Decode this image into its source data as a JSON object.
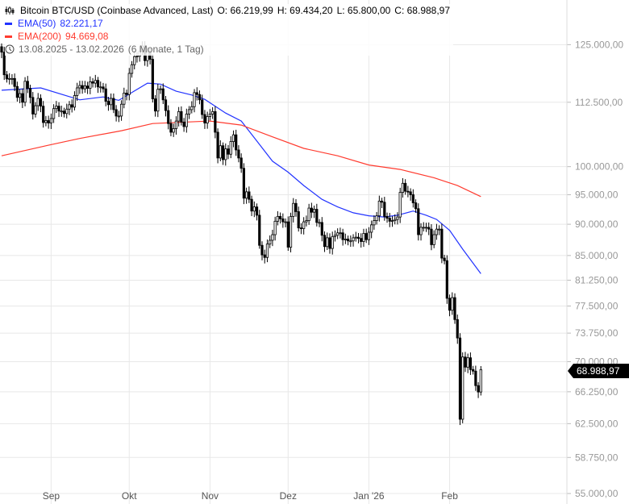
{
  "header": {
    "title": "Bitcoin BTC/USD (Coinbase Advanced, Last)",
    "open": "O: 66.219,99",
    "high": "H: 69.434,20",
    "low": "L: 65.800,00",
    "close": "C: 68.988,97",
    "ema50_label": "EMA(50)",
    "ema50_value": "82.221,17",
    "ema200_label": "EMA(200)",
    "ema200_value": "94.669,08",
    "range": "13.08.2025 - 13.02.2026",
    "period": "(6 Monate, 1 Tag)",
    "icons": [
      "candlestick-icon",
      "clock-icon"
    ]
  },
  "colors": {
    "ema50": "#2233ff",
    "ema200": "#ff3b2f",
    "candle_down": "#000000",
    "candle_up": "#ffffff",
    "grid": "#e8e8e8",
    "axis_text": "#999999"
  },
  "price_tag": "68.988,97",
  "chart_data": {
    "type": "candlestick",
    "y_scale": "log",
    "ylim": [
      55000,
      127000
    ],
    "grid": true,
    "y_ticks": [
      "125.000,00",
      "112.500,00",
      "100.000,00",
      "95.000,00",
      "90.000,00",
      "85.000,00",
      "81.250,00",
      "77.500,00",
      "73.750,00",
      "70.000,00",
      "66.250,00",
      "62.500,00",
      "58.750,00",
      "55.000,00"
    ],
    "y_tick_values": [
      125000,
      112500,
      100000,
      95000,
      90000,
      85000,
      81250,
      77500,
      73750,
      70000,
      66250,
      62500,
      58750,
      55000
    ],
    "x_ticks": [
      {
        "label": "Sep",
        "date": "2025-09-01"
      },
      {
        "label": "Okt",
        "date": "2025-10-01"
      },
      {
        "label": "Nov",
        "date": "2025-11-01"
      },
      {
        "label": "Dez",
        "date": "2025-12-01"
      },
      {
        "label": "Jan '26",
        "date": "2026-01-01"
      },
      {
        "label": "Feb",
        "date": "2026-02-01"
      }
    ],
    "start_date": "2025-08-13",
    "last_candle": {
      "open": 66219.99,
      "high": 69434.2,
      "low": 65800.0,
      "close": 68988.97
    },
    "daily_close": [
      123300,
      118300,
      117400,
      117500,
      117500,
      115800,
      113500,
      114300,
      112500,
      116900,
      115400,
      113500,
      110100,
      111800,
      113300,
      111700,
      108400,
      108800,
      108300,
      109200,
      111200,
      111700,
      110700,
      110700,
      110200,
      111100,
      112000,
      111500,
      113900,
      115500,
      116000,
      115300,
      115900,
      115400,
      116800,
      116500,
      117100,
      115700,
      115700,
      115300,
      112700,
      112000,
      113300,
      111000,
      109700,
      109700,
      112100,
      114400,
      114100,
      118600,
      120500,
      122300,
      122400,
      123500,
      124700,
      121400,
      123300,
      121700,
      113200,
      110700,
      115200,
      115300,
      113000,
      110800,
      108200,
      106500,
      107200,
      108700,
      110600,
      108500,
      107600,
      110100,
      111000,
      111600,
      114500,
      114100,
      113000,
      110000,
      108300,
      109600,
      110100,
      110600,
      106500,
      101600,
      103900,
      101300,
      103300,
      102300,
      104700,
      106000,
      103100,
      101600,
      99700,
      94400,
      95500,
      94200,
      92200,
      92900,
      91500,
      86600,
      85100,
      84700,
      86800,
      87400,
      88300,
      90500,
      91300,
      90900,
      90400,
      90400,
      86300,
      91300,
      93500,
      92100,
      89400,
      89300,
      90400,
      90600,
      92700,
      92000,
      92500,
      90300,
      90300,
      88200,
      86400,
      87800,
      86100,
      88000,
      88200,
      88600,
      88600,
      87500,
      87600,
      87300,
      87300,
      87800,
      87900,
      87700,
      87200,
      88500,
      87500,
      88700,
      89900,
      90600,
      91400,
      93900,
      93700,
      91300,
      91000,
      90500,
      90600,
      90800,
      91200,
      95400,
      97000,
      95600,
      95500,
      95000,
      93600,
      92600,
      88300,
      89500,
      89500,
      89500,
      89200,
      86700,
      88300,
      89200,
      89200,
      84600,
      84200,
      78600,
      76900,
      78700,
      75600,
      73100,
      63000,
      70600,
      69300,
      70500,
      69000,
      68800,
      67000,
      66219.99,
      68988.97
    ],
    "series": [
      {
        "name": "EMA(50)",
        "color": "#2233ff",
        "points": [
          [
            "2025-08-13",
            115000
          ],
          [
            "2025-08-28",
            115500
          ],
          [
            "2025-09-12",
            113000
          ],
          [
            "2025-09-21",
            113600
          ],
          [
            "2025-09-27",
            112900
          ],
          [
            "2025-10-08",
            116500
          ],
          [
            "2025-10-13",
            116300
          ],
          [
            "2025-10-19",
            114800
          ],
          [
            "2025-10-25",
            114000
          ],
          [
            "2025-10-30",
            113100
          ],
          [
            "2025-11-07",
            110300
          ],
          [
            "2025-11-13",
            108700
          ],
          [
            "2025-11-19",
            104800
          ],
          [
            "2025-11-25",
            101000
          ],
          [
            "2025-12-01",
            99000
          ],
          [
            "2025-12-07",
            96600
          ],
          [
            "2025-12-14",
            94200
          ],
          [
            "2025-12-20",
            92900
          ],
          [
            "2025-12-26",
            91900
          ],
          [
            "2026-01-01",
            91400
          ],
          [
            "2026-01-07",
            91200
          ],
          [
            "2026-01-12",
            91500
          ],
          [
            "2026-01-18",
            92200
          ],
          [
            "2026-01-23",
            91500
          ],
          [
            "2026-01-27",
            90800
          ],
          [
            "2026-02-01",
            89000
          ],
          [
            "2026-02-06",
            86000
          ],
          [
            "2026-02-13",
            82221.17
          ]
        ]
      },
      {
        "name": "EMA(200)",
        "color": "#ff3b2f",
        "points": [
          [
            "2025-08-13",
            102000
          ],
          [
            "2025-08-31",
            104000
          ],
          [
            "2025-09-12",
            105300
          ],
          [
            "2025-09-28",
            106800
          ],
          [
            "2025-10-10",
            108200
          ],
          [
            "2025-11-01",
            108700
          ],
          [
            "2025-11-13",
            107900
          ],
          [
            "2025-11-25",
            105600
          ],
          [
            "2025-12-07",
            103400
          ],
          [
            "2025-12-20",
            102000
          ],
          [
            "2026-01-01",
            100300
          ],
          [
            "2026-01-13",
            99500
          ],
          [
            "2026-01-26",
            98000
          ],
          [
            "2026-02-04",
            96600
          ],
          [
            "2026-02-13",
            94669.08
          ]
        ]
      }
    ]
  }
}
